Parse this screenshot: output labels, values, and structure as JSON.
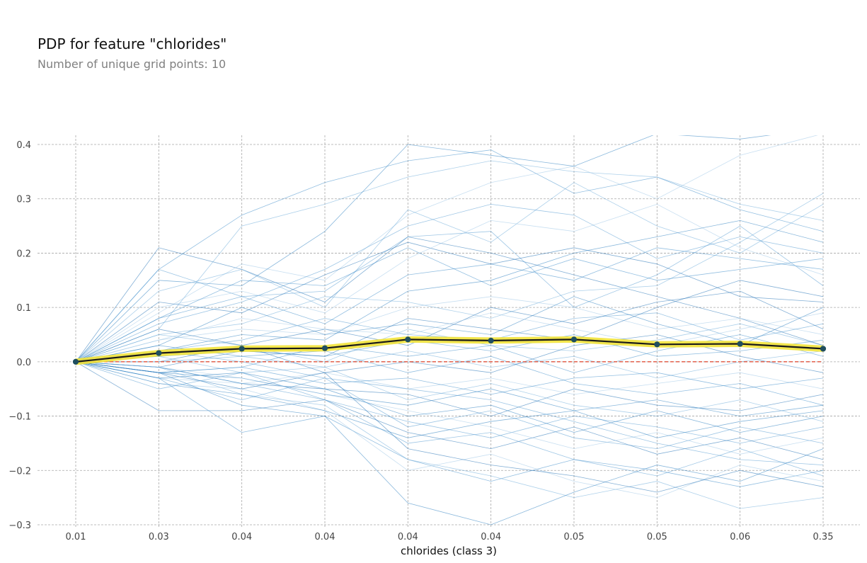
{
  "chart_data": {
    "type": "line",
    "title": "PDP for feature \"chlorides\"",
    "subtitle": "Number of unique grid points: 10",
    "xlabel": "chlorides (class 3)",
    "ylabel": "",
    "categories": [
      "0.01",
      "0.03",
      "0.04",
      "0.04",
      "0.04",
      "0.04",
      "0.05",
      "0.05",
      "0.06",
      "0.35"
    ],
    "ylim": [
      -0.3,
      0.42
    ],
    "yticks": [
      "0.4",
      "0.3",
      "0.2",
      "0.1",
      "0.0",
      "−0.1",
      "−0.2",
      "−0.3"
    ],
    "ytick_values": [
      0.4,
      0.3,
      0.2,
      0.1,
      0.0,
      -0.1,
      -0.2,
      -0.3
    ],
    "grid": true,
    "series": [
      {
        "role": "average",
        "values": [
          0.0,
          0.016,
          0.024,
          0.025,
          0.041,
          0.039,
          0.041,
          0.032,
          0.033,
          0.024
        ]
      },
      {
        "role": "baseline",
        "values": [
          0,
          0,
          0,
          0,
          0,
          0,
          0,
          0,
          0,
          0
        ]
      }
    ],
    "ice_lines": [
      [
        0,
        0.21,
        0.17,
        0.11,
        0.23,
        0.2,
        0.16,
        0.12,
        0.08,
        0.03
      ],
      [
        0,
        0.17,
        0.27,
        0.33,
        0.37,
        0.39,
        0.31,
        0.34,
        0.28,
        0.24
      ],
      [
        0,
        0.06,
        0.25,
        0.29,
        0.34,
        0.37,
        0.35,
        0.34,
        0.29,
        0.26
      ],
      [
        0,
        0.09,
        0.18,
        0.15,
        0.27,
        0.33,
        0.36,
        0.3,
        0.38,
        0.42
      ],
      [
        0,
        0.15,
        0.14,
        0.24,
        0.4,
        0.38,
        0.36,
        0.42,
        0.41,
        0.43
      ],
      [
        0,
        0.17,
        0.12,
        0.13,
        0.23,
        0.24,
        0.1,
        0.16,
        0.25,
        0.14
      ],
      [
        0,
        0.11,
        0.09,
        0.16,
        0.22,
        0.18,
        0.21,
        0.18,
        0.12,
        0.11
      ],
      [
        0,
        0.08,
        0.12,
        0.07,
        0.16,
        0.18,
        0.15,
        0.21,
        0.19,
        0.17
      ],
      [
        0,
        0.05,
        0.07,
        0.12,
        0.11,
        0.08,
        0.13,
        0.14,
        0.22,
        0.31
      ],
      [
        0,
        0.04,
        0.06,
        0.05,
        0.1,
        0.12,
        0.1,
        0.06,
        0.08,
        0.05
      ],
      [
        0,
        0.03,
        0.1,
        0.05,
        0.07,
        0.05,
        0.12,
        0.07,
        0.03,
        0.1
      ],
      [
        0,
        0.02,
        0.04,
        0.08,
        0.05,
        0.04,
        0.08,
        0.09,
        0.04,
        0.07
      ],
      [
        0,
        0.06,
        0.03,
        0.06,
        0.03,
        0.1,
        0.07,
        0.11,
        0.13,
        0.06
      ],
      [
        0,
        0.01,
        0.02,
        0.01,
        0.04,
        0.02,
        0.05,
        0.01,
        0.02,
        0.04
      ],
      [
        0,
        0.13,
        0.17,
        0.1,
        0.28,
        0.22,
        0.33,
        0.25,
        0.2,
        0.29
      ],
      [
        0,
        0.1,
        0.13,
        0.09,
        0.19,
        0.26,
        0.24,
        0.29,
        0.21,
        0.16
      ],
      [
        0,
        0.02,
        0.05,
        0.04,
        0.13,
        0.15,
        0.2,
        0.23,
        0.26,
        0.22
      ],
      [
        0,
        0.07,
        0.11,
        0.17,
        0.25,
        0.29,
        0.27,
        0.19,
        0.23,
        0.2
      ],
      [
        0,
        -0.01,
        0.02,
        0.01,
        0.08,
        0.06,
        0.04,
        0.1,
        0.15,
        0.12
      ],
      [
        0,
        -0.02,
        -0.01,
        0.03,
        0.01,
        0.03,
        -0.02,
        0.02,
        0.05,
        0.01
      ],
      [
        0,
        0.0,
        0.01,
        -0.01,
        0.02,
        -0.01,
        0.01,
        -0.03,
        0.0,
        0.02
      ],
      [
        0,
        -0.03,
        -0.04,
        -0.02,
        -0.05,
        -0.03,
        -0.06,
        -0.04,
        -0.02,
        -0.05
      ],
      [
        0,
        -0.02,
        -0.03,
        -0.06,
        -0.08,
        -0.05,
        -0.09,
        -0.07,
        -0.1,
        -0.08
      ],
      [
        0,
        -0.05,
        -0.02,
        -0.07,
        -0.11,
        -0.14,
        -0.1,
        -0.12,
        -0.15,
        -0.12
      ],
      [
        0,
        -0.09,
        -0.09,
        -0.07,
        -0.13,
        -0.16,
        -0.12,
        -0.17,
        -0.14,
        -0.18
      ],
      [
        0,
        -0.03,
        -0.13,
        -0.1,
        -0.18,
        -0.22,
        -0.18,
        -0.2,
        -0.23,
        -0.2
      ],
      [
        0,
        -0.01,
        -0.06,
        -0.08,
        -0.18,
        -0.21,
        -0.25,
        -0.22,
        -0.27,
        -0.25
      ],
      [
        0,
        -0.04,
        -0.05,
        -0.09,
        -0.2,
        -0.17,
        -0.22,
        -0.25,
        -0.19,
        -0.22
      ],
      [
        0,
        -0.02,
        -0.08,
        -0.1,
        -0.26,
        -0.3,
        -0.24,
        -0.19,
        -0.22,
        -0.16
      ],
      [
        0,
        -0.03,
        -0.07,
        -0.03,
        -0.12,
        -0.09,
        -0.14,
        -0.16,
        -0.12,
        -0.15
      ],
      [
        0,
        -0.01,
        -0.04,
        -0.05,
        -0.06,
        -0.1,
        -0.05,
        -0.08,
        -0.09,
        -0.06
      ],
      [
        0,
        -0.02,
        -0.01,
        -0.04,
        -0.03,
        -0.06,
        -0.03,
        -0.02,
        -0.05,
        -0.03
      ],
      [
        0,
        0.01,
        -0.02,
        -0.01,
        -0.07,
        -0.04,
        -0.08,
        -0.1,
        -0.07,
        -0.11
      ],
      [
        0,
        -0.01,
        -0.03,
        -0.06,
        -0.09,
        -0.12,
        -0.16,
        -0.13,
        -0.17,
        -0.14
      ],
      [
        0,
        -0.04,
        -0.06,
        -0.09,
        -0.14,
        -0.11,
        -0.09,
        -0.14,
        -0.11,
        -0.09
      ],
      [
        0,
        0.02,
        0.0,
        -0.03,
        -0.05,
        -0.07,
        -0.11,
        -0.15,
        -0.18,
        -0.19
      ],
      [
        0,
        -0.02,
        -0.05,
        -0.02,
        -0.16,
        -0.19,
        -0.21,
        -0.24,
        -0.2,
        -0.23
      ],
      [
        0,
        0.03,
        0.01,
        0.02,
        -0.02,
        0.01,
        -0.04,
        -0.06,
        -0.04,
        -0.08
      ],
      [
        0,
        0.05,
        0.03,
        0.0,
        0.06,
        0.03,
        0.02,
        0.04,
        0.07,
        0.03
      ],
      [
        0,
        0.04,
        0.08,
        0.06,
        0.05,
        0.09,
        0.06,
        0.03,
        0.06,
        0.09
      ],
      [
        0,
        -0.03,
        -0.02,
        -0.05,
        -0.1,
        -0.08,
        -0.13,
        -0.09,
        -0.13,
        -0.1
      ],
      [
        0,
        -0.01,
        -0.04,
        -0.07,
        -0.15,
        -0.13,
        -0.18,
        -0.21,
        -0.16,
        -0.21
      ],
      [
        0,
        0.0,
        0.03,
        -0.02,
        0.0,
        -0.02,
        0.03,
        0.05,
        0.01,
        -0.02
      ],
      [
        0,
        0.08,
        0.15,
        0.14,
        0.21,
        0.14,
        0.19,
        0.15,
        0.17,
        0.19
      ]
    ]
  }
}
